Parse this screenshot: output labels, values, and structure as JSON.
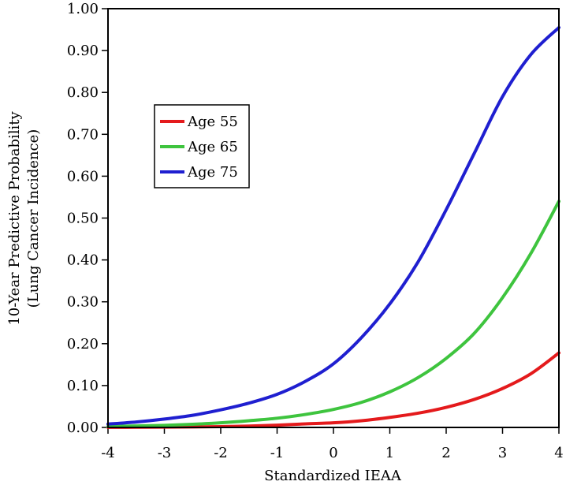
{
  "chart_data": {
    "type": "line",
    "title": "",
    "xlabel": "Standardized IEAA",
    "ylabel_lines": [
      "10-Year Predictive Probability",
      "(Lung Cancer Incidence)"
    ],
    "xlim": [
      -4,
      4
    ],
    "ylim": [
      0,
      1
    ],
    "x_ticks": [
      -4,
      -3,
      -2,
      -1,
      0,
      1,
      2,
      3,
      4
    ],
    "x_tick_labels": [
      "-4",
      "-3",
      "-2",
      "-1",
      "0",
      "1",
      "2",
      "3",
      "4"
    ],
    "y_ticks": [
      0,
      0.1,
      0.2,
      0.3,
      0.4,
      0.5,
      0.6,
      0.7,
      0.8,
      0.9,
      1.0
    ],
    "y_tick_labels": [
      "0.00",
      "0.10",
      "0.20",
      "0.30",
      "0.40",
      "0.50",
      "0.60",
      "0.70",
      "0.80",
      "0.90",
      "1.00"
    ],
    "grid": false,
    "legend_position": "upper-left",
    "x": [
      -4,
      -3.5,
      -3,
      -2.5,
      -2,
      -1.5,
      -1,
      -0.5,
      0,
      0.5,
      1,
      1.5,
      2,
      2.5,
      3,
      3.5,
      4
    ],
    "series": [
      {
        "name": "Age 55",
        "color": "#e41a1c",
        "values": [
          0.0002,
          0.0004,
          0.0007,
          0.0012,
          0.002,
          0.0033,
          0.0055,
          0.0085,
          0.011,
          0.016,
          0.024,
          0.034,
          0.048,
          0.067,
          0.093,
          0.128,
          0.178
        ]
      },
      {
        "name": "Age 65",
        "color": "#3ec43e",
        "values": [
          0.002,
          0.0035,
          0.005,
          0.0075,
          0.011,
          0.016,
          0.022,
          0.031,
          0.043,
          0.06,
          0.085,
          0.119,
          0.165,
          0.225,
          0.31,
          0.415,
          0.54
        ]
      },
      {
        "name": "Age 75",
        "color": "#1f1fd0",
        "values": [
          0.008,
          0.013,
          0.02,
          0.029,
          0.042,
          0.058,
          0.079,
          0.11,
          0.152,
          0.215,
          0.295,
          0.395,
          0.52,
          0.655,
          0.79,
          0.89,
          0.955
        ]
      }
    ]
  }
}
